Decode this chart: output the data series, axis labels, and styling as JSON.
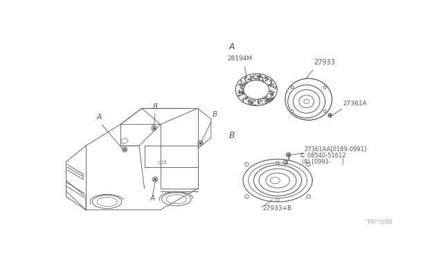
{
  "bg_color": "#ffffff",
  "car_color": "#666666",
  "part_color": "#555555",
  "text_color": "#555555",
  "label_A": "A",
  "label_B": "B",
  "part_28194M": "28194M",
  "part_27933": "27933",
  "part_27361A": "27361A",
  "part_27361AA": "27361AA[0189-0991]",
  "part_08540": "© 08540-51612",
  "part_8_bracket": "(8) [0991-      ]",
  "part_27933B": "27933+B",
  "footnote": "^P8/*0088"
}
